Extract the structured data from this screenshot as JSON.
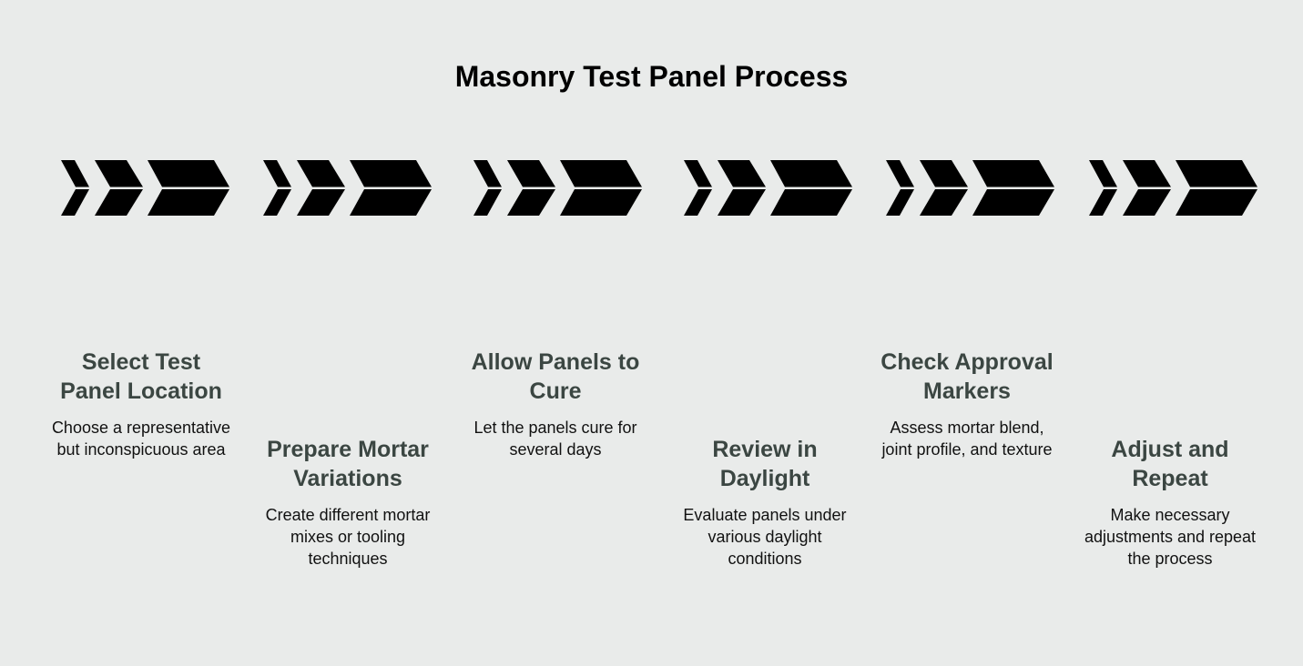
{
  "title": "Masonry Test Panel Process",
  "chevron_color": "#000000",
  "steps": [
    {
      "title": "Select Test Panel Location",
      "text": "Choose a representative but inconspicuous area"
    },
    {
      "title": "Prepare Mortar Variations",
      "text": "Create different mortar mixes or tooling techniques"
    },
    {
      "title": "Allow Panels to Cure",
      "text": "Let the panels cure for several days"
    },
    {
      "title": "Review in Daylight",
      "text": "Evaluate panels under various daylight conditions"
    },
    {
      "title": "Check Approval Markers",
      "text": "Assess mortar blend, joint profile, and texture"
    },
    {
      "title": "Adjust and Repeat",
      "text": "Make necessary adjustments and repeat the process"
    }
  ]
}
